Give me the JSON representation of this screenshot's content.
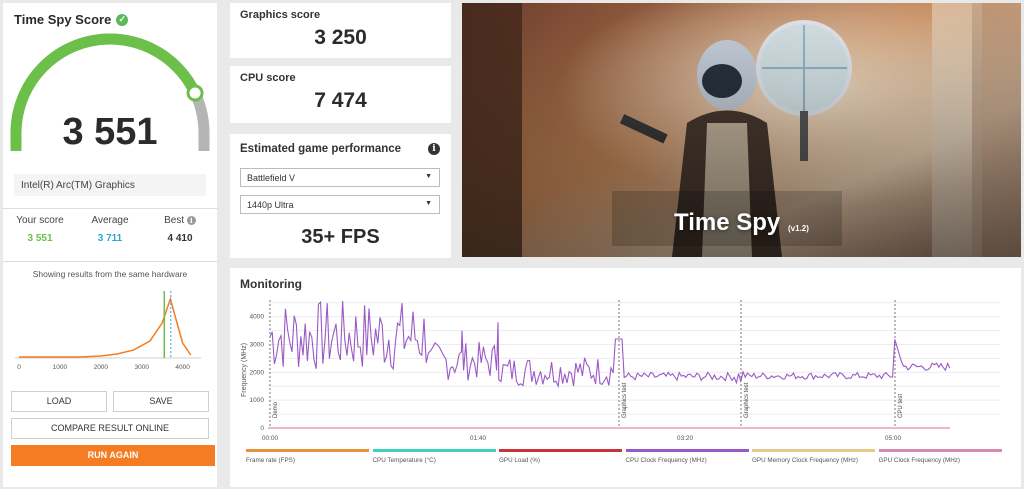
{
  "score_panel": {
    "title": "Time Spy Score",
    "score": "3 551",
    "gauge_fraction": 0.86,
    "gpu_name": "Intel(R) Arc(TM) Graphics",
    "your_score_label": "Your score",
    "your_score": "3 551",
    "average_label": "Average",
    "average": "3 711",
    "best_label": "Best",
    "best": "4 410",
    "histogram_title": "Showing results from the same hardware",
    "histogram_ticks": [
      "0",
      "1000",
      "2000",
      "3000",
      "4000"
    ],
    "colors": {
      "green": "#6cc04a",
      "blue": "#2aa7d8",
      "orange": "#f57c22"
    }
  },
  "buttons": {
    "load": "LOAD",
    "save": "SAVE",
    "compare": "COMPARE RESULT ONLINE",
    "run_again": "RUN AGAIN"
  },
  "graphics": {
    "label": "Graphics score",
    "value": "3 250"
  },
  "cpu": {
    "label": "CPU score",
    "value": "7 474"
  },
  "game_perf": {
    "title": "Estimated game performance",
    "game": "Battlefield V",
    "preset": "1440p Ultra",
    "fps": "35+ FPS"
  },
  "banner": {
    "title": "Time Spy",
    "version": "(v1.2)"
  },
  "monitoring": {
    "title": "Monitoring",
    "y_axis_label": "Frequency (MHz)",
    "y_ticks": [
      "4000",
      "3000",
      "2000",
      "1000",
      "0"
    ],
    "x_ticks": [
      "00:00",
      "01:40",
      "03:20",
      "05:00"
    ],
    "markers": [
      "Demo",
      "Graphics test",
      "Graphics test",
      "CPU test"
    ],
    "legend": [
      {
        "label": "Frame rate (FPS)",
        "color": "#e8913a"
      },
      {
        "label": "CPU Temperature (°C)",
        "color": "#3fd1c0"
      },
      {
        "label": "GPU Load (%)",
        "color": "#c9333a"
      },
      {
        "label": "CPU Clock Frequency (MHz)",
        "color": "#9b59c7"
      },
      {
        "label": "GPU Memory Clock Frequency (MHz)",
        "color": "#e8c98a"
      },
      {
        "label": "GPU Clock Frequency (MHz)",
        "color": "#d98ab0"
      }
    ]
  }
}
